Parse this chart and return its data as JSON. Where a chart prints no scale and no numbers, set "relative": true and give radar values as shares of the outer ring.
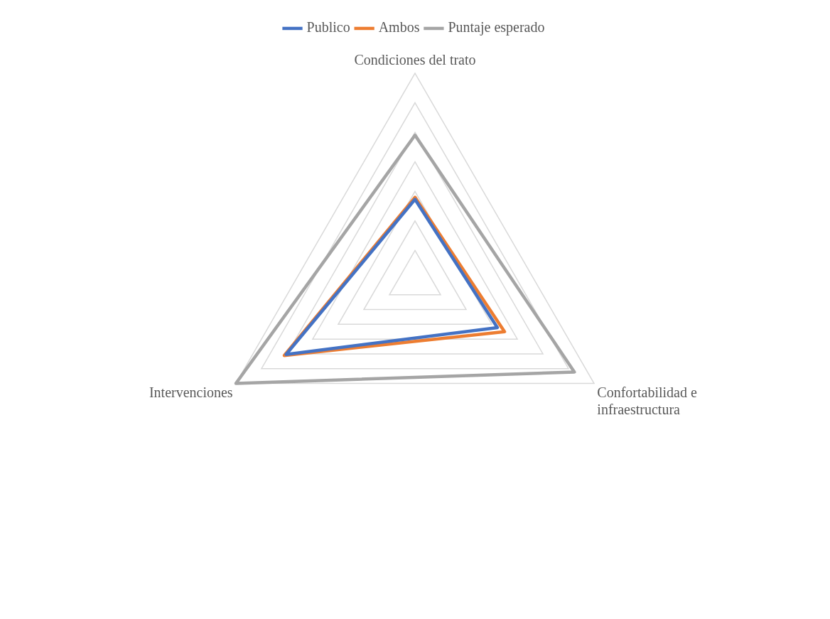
{
  "chart_data": {
    "type": "radar",
    "relative": true,
    "categories": [
      "Condiciones del trato",
      "Confortabilidad e infraestructura",
      "Intervenciones"
    ],
    "series": [
      {
        "name": "Publico",
        "color": "#4472c4",
        "values": [
          0.39,
          0.46,
          0.72
        ]
      },
      {
        "name": "Ambos",
        "color": "#ed7d31",
        "values": [
          0.4,
          0.5,
          0.73
        ]
      },
      {
        "name": "Puntaje esperado",
        "color": "#a5a5a5",
        "values": [
          0.7,
          0.89,
          1.0
        ]
      }
    ],
    "legend": "top",
    "grid": true,
    "marker": "none",
    "line_style": "solid"
  }
}
